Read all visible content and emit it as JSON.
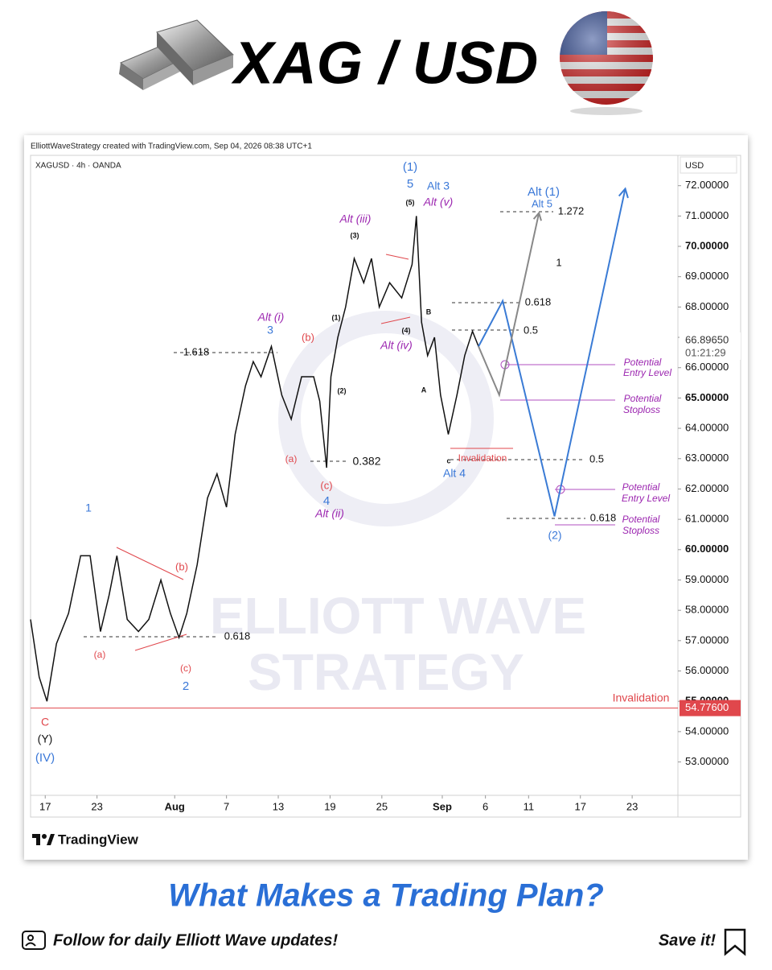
{
  "header": {
    "title": "XAG / USD"
  },
  "chart_data": {
    "type": "line",
    "credit": "ElliottWaveStrategy created with TradingView.com, Sep 04, 2026 08:38 UTC+1",
    "symbol": "XAGUSD · 4h · OANDA",
    "y_axis_label": "USD",
    "xlim": [
      15.3,
      90.3
    ],
    "ylim": [
      51.9,
      73.0
    ],
    "xticks": [
      {
        "value": 17,
        "label": "17"
      },
      {
        "value": 23,
        "label": "23"
      },
      {
        "value": 32,
        "label": "Aug"
      },
      {
        "value": 38,
        "label": "7"
      },
      {
        "value": 44,
        "label": "13"
      },
      {
        "value": 50,
        "label": "19"
      },
      {
        "value": 56,
        "label": "25"
      },
      {
        "value": 63,
        "label": "Sep"
      },
      {
        "value": 68,
        "label": "6"
      },
      {
        "value": 73,
        "label": "11"
      },
      {
        "value": 79,
        "label": "17"
      },
      {
        "value": 85,
        "label": "23"
      }
    ],
    "yticks": [
      {
        "value": 53,
        "label": "53.00000"
      },
      {
        "value": 54,
        "label": "54.00000"
      },
      {
        "value": 55,
        "label": "55.00000"
      },
      {
        "value": 56,
        "label": "56.00000"
      },
      {
        "value": 57,
        "label": "57.00000"
      },
      {
        "value": 58,
        "label": "58.00000"
      },
      {
        "value": 59,
        "label": "59.00000"
      },
      {
        "value": 60,
        "label": "60.00000"
      },
      {
        "value": 61,
        "label": "61.00000"
      },
      {
        "value": 62,
        "label": "62.00000"
      },
      {
        "value": 63,
        "label": "63.00000"
      },
      {
        "value": 64,
        "label": "64.00000"
      },
      {
        "value": 65,
        "label": "65.00000"
      },
      {
        "value": 66,
        "label": "66.00000"
      },
      {
        "value": 67,
        "label": "67.00000"
      },
      {
        "value": 68,
        "label": "68.00000"
      },
      {
        "value": 69,
        "label": "69.00000"
      },
      {
        "value": 70,
        "label": "70.00000"
      },
      {
        "value": 71,
        "label": "71.00000"
      },
      {
        "value": 72,
        "label": "72.00000"
      }
    ],
    "last_price": {
      "value": 66.8965,
      "label": "66.89650"
    },
    "countdown": "01:21:29",
    "invalidation_level": {
      "value": 54.776,
      "label": "54.77600"
    },
    "series": [
      {
        "color": "#111111",
        "x": [
          15.3,
          16.3,
          17.2,
          18.3,
          19.7,
          21.1,
          22.2,
          23.4,
          24.4,
          25.3,
          26.5,
          27.8,
          29.0,
          30.4,
          31.5,
          32.5,
          33.4,
          34.6,
          35.8,
          36.9,
          38.0,
          39.0,
          40.2,
          41.1,
          42.0,
          43.2,
          44.4,
          45.5,
          46.7,
          48.1,
          48.8,
          49.6,
          50.1,
          50.9,
          51.8,
          52.8,
          53.9,
          54.8,
          55.7,
          56.9,
          58.3,
          59.5,
          60.0,
          60.6,
          61.3,
          62.1,
          62.8,
          63.7,
          64.7,
          65.6,
          66.5,
          67.2
        ],
        "values": [
          57.7,
          55.8,
          55.0,
          56.9,
          57.9,
          59.8,
          59.8,
          57.3,
          58.5,
          59.8,
          57.7,
          57.3,
          57.7,
          59.0,
          57.9,
          57.1,
          57.9,
          59.5,
          61.7,
          62.5,
          61.4,
          63.8,
          65.4,
          66.2,
          65.7,
          66.7,
          65.1,
          64.3,
          65.7,
          65.7,
          64.9,
          62.7,
          65.7,
          67.0,
          68.0,
          69.6,
          68.8,
          69.6,
          68.0,
          68.8,
          68.3,
          69.4,
          71.0,
          67.5,
          66.4,
          67.0,
          65.1,
          63.8,
          65.1,
          66.4,
          67.2,
          66.7
        ]
      },
      {
        "color": "#3a7bd5",
        "x": [
          67.2,
          70.0,
          76.0,
          84.2
        ],
        "values": [
          66.7,
          68.2,
          61.1,
          71.9
        ]
      },
      {
        "color": "#888888",
        "x": [
          67.2,
          69.6,
          74.2
        ],
        "values": [
          66.7,
          65.1,
          71.1
        ]
      }
    ],
    "annotations": [
      "1",
      "(a)",
      "(b)",
      "(c)",
      "2",
      "0.618",
      "C",
      "(Y)",
      "(IV)",
      "1.618",
      "Alt (i)",
      "3",
      "(b)",
      "(a)",
      "0.382",
      "(c)",
      "4",
      "Alt (ii)",
      "Alt (iii)",
      "(3)",
      "(1)",
      "(2)",
      "(4)",
      "Alt (iv)",
      "(5)",
      "(1)",
      "5",
      "Alt 3",
      "Alt (v)",
      "B",
      "A",
      "c",
      "Invalidation",
      "Alt 4",
      "0.618",
      "0.5",
      "0.5",
      "0.618",
      "(2)",
      "Alt (1)",
      "Alt 5",
      "1.272",
      "1",
      "Potential",
      "Entry Level",
      "Potential",
      "Stoploss",
      "Potential",
      "Entry Level",
      "Potential",
      "Stoploss",
      "Invalidation"
    ],
    "watermark": [
      "ELLIOTT WAVE",
      "STRATEGY"
    ],
    "brand": "TradingView"
  },
  "footer": {
    "headline": "What Makes a Trading Plan?",
    "follow": "Follow for daily Elliott Wave updates!",
    "save": "Save it!"
  }
}
